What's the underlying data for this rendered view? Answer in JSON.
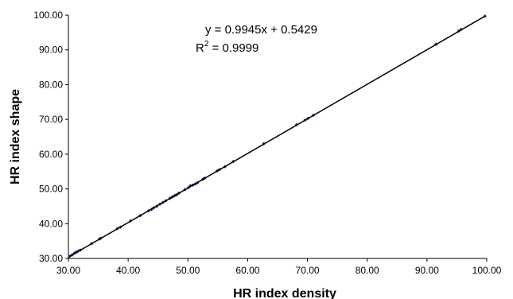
{
  "chart_data": {
    "type": "scatter",
    "xlabel": "HR index density",
    "ylabel": "HR index shape",
    "xlim": [
      30,
      100
    ],
    "ylim": [
      30,
      100
    ],
    "xticks": [
      "30.00",
      "40.00",
      "50.00",
      "60.00",
      "70.00",
      "80.00",
      "90.00",
      "100.00"
    ],
    "yticks": [
      "30.00",
      "40.00",
      "50.00",
      "60.00",
      "70.00",
      "80.00",
      "90.00",
      "100.00"
    ],
    "grid": false,
    "marker_color": "#1f2a6b",
    "line_color": "#000000",
    "trendline": {
      "type": "linear",
      "slope": 0.9945,
      "intercept": 0.5429,
      "equation": "y = 0.9945x + 0.5429",
      "r2_label": "R",
      "r2_exp": "2",
      "r2_value": " = 0.9999"
    },
    "points": [
      [
        30.2,
        30.6
      ],
      [
        30.6,
        31.0
      ],
      [
        31.0,
        31.5
      ],
      [
        31.3,
        31.8
      ],
      [
        31.6,
        32.1
      ],
      [
        32.0,
        32.4
      ],
      [
        33.9,
        34.3
      ],
      [
        35.2,
        35.6
      ],
      [
        35.4,
        35.8
      ],
      [
        38.2,
        38.6
      ],
      [
        38.7,
        39.0
      ],
      [
        40.4,
        40.8
      ],
      [
        42.0,
        42.3
      ],
      [
        43.4,
        43.7
      ],
      [
        43.9,
        44.1
      ],
      [
        44.3,
        44.6
      ],
      [
        44.8,
        45.0
      ],
      [
        45.3,
        45.6
      ],
      [
        45.8,
        46.1
      ],
      [
        46.3,
        46.6
      ],
      [
        47.0,
        47.3
      ],
      [
        47.4,
        47.7
      ],
      [
        47.8,
        48.1
      ],
      [
        48.1,
        48.3
      ],
      [
        48.5,
        48.8
      ],
      [
        49.5,
        49.8
      ],
      [
        50.1,
        50.4
      ],
      [
        50.4,
        50.9
      ],
      [
        50.8,
        51.1
      ],
      [
        51.2,
        51.4
      ],
      [
        51.6,
        51.8
      ],
      [
        52.5,
        52.8
      ],
      [
        52.8,
        53.1
      ],
      [
        54.9,
        55.2
      ],
      [
        55.3,
        55.6
      ],
      [
        56.2,
        56.4
      ],
      [
        57.6,
        57.9
      ],
      [
        62.7,
        63.0
      ],
      [
        68.2,
        68.5
      ],
      [
        69.6,
        69.8
      ],
      [
        70.1,
        70.3
      ],
      [
        71.0,
        71.2
      ],
      [
        91.5,
        91.6
      ],
      [
        95.3,
        95.4
      ],
      [
        95.7,
        95.9
      ],
      [
        99.7,
        99.7
      ]
    ]
  }
}
